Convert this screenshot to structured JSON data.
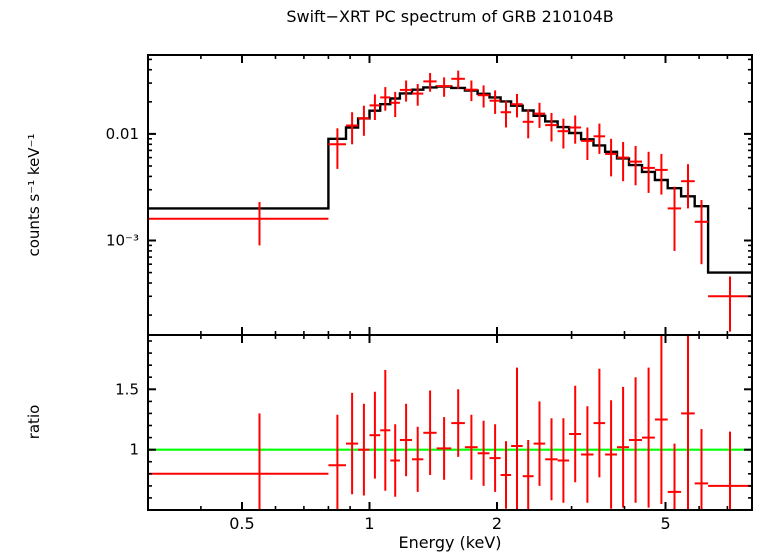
{
  "chart_data": {
    "type": "line",
    "title": "Swift−XRT PC spectrum of GRB 210104B",
    "xlabel": "Energy (keV)",
    "ylabel_top": "counts s⁻¹ keV⁻¹",
    "ylabel_bottom": "ratio",
    "x_scale": "log",
    "xlim": [
      0.3,
      8.0
    ],
    "xticks": [
      {
        "value": 0.5,
        "label": "0.5"
      },
      {
        "value": 1,
        "label": "1"
      },
      {
        "value": 2,
        "label": "2"
      },
      {
        "value": 5,
        "label": "5"
      }
    ],
    "colors": {
      "data": "#ff0000",
      "model": "#000000",
      "ratio_line": "#00ff00",
      "frame": "#000000"
    },
    "legend": "none",
    "grid": "off",
    "top_panel": {
      "y_scale": "log",
      "ylim": [
        0.00013,
        0.055
      ],
      "yticks": [
        {
          "value": 0.01,
          "label": "0.01"
        },
        {
          "value": 0.001,
          "label": "10⁻³"
        }
      ],
      "model_steps": {
        "columns": [
          "e_lo_keV",
          "e_hi_keV",
          "model_rate"
        ],
        "rows": [
          [
            0.3,
            0.8,
            0.002
          ],
          [
            0.8,
            0.88,
            0.009
          ],
          [
            0.88,
            0.94,
            0.0115
          ],
          [
            0.94,
            1.0,
            0.014
          ],
          [
            1.0,
            1.06,
            0.0165
          ],
          [
            1.06,
            1.12,
            0.019
          ],
          [
            1.12,
            1.18,
            0.0215
          ],
          [
            1.18,
            1.26,
            0.024
          ],
          [
            1.26,
            1.34,
            0.026
          ],
          [
            1.34,
            1.44,
            0.0273
          ],
          [
            1.44,
            1.56,
            0.0278
          ],
          [
            1.56,
            1.68,
            0.027
          ],
          [
            1.68,
            1.8,
            0.0255
          ],
          [
            1.8,
            1.92,
            0.0238
          ],
          [
            1.92,
            2.04,
            0.022
          ],
          [
            2.04,
            2.16,
            0.0202
          ],
          [
            2.16,
            2.3,
            0.0184
          ],
          [
            2.3,
            2.44,
            0.0166
          ],
          [
            2.44,
            2.6,
            0.0148
          ],
          [
            2.6,
            2.78,
            0.0131
          ],
          [
            2.78,
            2.96,
            0.0116
          ],
          [
            2.96,
            3.16,
            0.0102
          ],
          [
            3.16,
            3.38,
            0.0089
          ],
          [
            3.38,
            3.6,
            0.0078
          ],
          [
            3.6,
            3.84,
            0.0068
          ],
          [
            3.84,
            4.1,
            0.0059
          ],
          [
            4.1,
            4.4,
            0.0051
          ],
          [
            4.4,
            4.72,
            0.0044
          ],
          [
            4.72,
            5.06,
            0.0037
          ],
          [
            5.06,
            5.44,
            0.0031
          ],
          [
            5.44,
            5.86,
            0.0026
          ],
          [
            5.86,
            6.3,
            0.0021
          ],
          [
            6.3,
            8.0,
            0.0005
          ]
        ]
      },
      "data_points": {
        "columns": [
          "energy_keV",
          "e_lo_keV",
          "e_hi_keV",
          "rate",
          "rate_err"
        ],
        "rows": [
          [
            0.55,
            0.3,
            0.8,
            0.0016,
            0.0007
          ],
          [
            0.84,
            0.8,
            0.88,
            0.008,
            0.0033
          ],
          [
            0.91,
            0.88,
            0.94,
            0.012,
            0.004
          ],
          [
            0.97,
            0.94,
            1.0,
            0.014,
            0.0044
          ],
          [
            1.03,
            1.0,
            1.06,
            0.0185,
            0.005
          ],
          [
            1.09,
            1.06,
            1.12,
            0.022,
            0.0055
          ],
          [
            1.15,
            1.12,
            1.18,
            0.0196,
            0.0052
          ],
          [
            1.22,
            1.18,
            1.26,
            0.0259,
            0.0058
          ],
          [
            1.3,
            1.26,
            1.34,
            0.0239,
            0.0055
          ],
          [
            1.39,
            1.34,
            1.44,
            0.0311,
            0.0062
          ],
          [
            1.5,
            1.44,
            1.56,
            0.0281,
            0.0058
          ],
          [
            1.62,
            1.56,
            1.68,
            0.0329,
            0.0064
          ],
          [
            1.74,
            1.68,
            1.8,
            0.026,
            0.0057
          ],
          [
            1.86,
            1.8,
            1.92,
            0.0231,
            0.0054
          ],
          [
            1.98,
            1.92,
            2.04,
            0.0205,
            0.0051
          ],
          [
            2.1,
            2.04,
            2.16,
            0.016,
            0.0045
          ],
          [
            2.23,
            2.16,
            2.3,
            0.019,
            0.0047
          ],
          [
            2.37,
            2.3,
            2.44,
            0.013,
            0.0039
          ],
          [
            2.52,
            2.44,
            2.6,
            0.0155,
            0.0041
          ],
          [
            2.69,
            2.6,
            2.78,
            0.0121,
            0.0036
          ],
          [
            2.87,
            2.78,
            2.96,
            0.0106,
            0.0033
          ],
          [
            3.06,
            2.96,
            3.16,
            0.0115,
            0.0034
          ],
          [
            3.27,
            3.16,
            3.38,
            0.0086,
            0.0029
          ],
          [
            3.49,
            3.38,
            3.6,
            0.0095,
            0.003
          ],
          [
            3.72,
            3.6,
            3.84,
            0.0065,
            0.0025
          ],
          [
            3.97,
            3.84,
            4.1,
            0.006,
            0.0024
          ],
          [
            4.25,
            4.1,
            4.4,
            0.0055,
            0.0022
          ],
          [
            4.56,
            4.4,
            4.72,
            0.0048,
            0.002
          ],
          [
            4.89,
            4.72,
            5.06,
            0.0046,
            0.0019
          ],
          [
            5.25,
            5.06,
            5.44,
            0.002,
            0.0012
          ],
          [
            5.65,
            5.44,
            5.86,
            0.0036,
            0.0016
          ],
          [
            6.08,
            5.86,
            6.3,
            0.0015,
            0.0009
          ],
          [
            7.1,
            6.3,
            8.0,
            0.0003,
            0.00016
          ]
        ]
      }
    },
    "bottom_panel": {
      "y_scale": "linear",
      "ylim": [
        0.5,
        1.95
      ],
      "yticks": [
        {
          "value": 1,
          "label": "1"
        },
        {
          "value": 1.5,
          "label": "1.5"
        }
      ],
      "reference_line": 1.0,
      "data_points": {
        "columns": [
          "energy_keV",
          "e_lo_keV",
          "e_hi_keV",
          "ratio",
          "ratio_err"
        ],
        "rows": [
          [
            0.55,
            0.3,
            0.8,
            0.8,
            0.5
          ],
          [
            0.84,
            0.8,
            0.88,
            0.87,
            0.42
          ],
          [
            0.91,
            0.88,
            0.94,
            1.05,
            0.42
          ],
          [
            0.97,
            0.94,
            1.0,
            1.0,
            0.38
          ],
          [
            1.03,
            1.0,
            1.06,
            1.12,
            0.36
          ],
          [
            1.09,
            1.06,
            1.12,
            1.16,
            0.5
          ],
          [
            1.15,
            1.12,
            1.18,
            0.91,
            0.3
          ],
          [
            1.22,
            1.18,
            1.26,
            1.08,
            0.3
          ],
          [
            1.3,
            1.26,
            1.34,
            0.92,
            0.27
          ],
          [
            1.39,
            1.34,
            1.44,
            1.14,
            0.35
          ],
          [
            1.5,
            1.44,
            1.56,
            1.01,
            0.26
          ],
          [
            1.62,
            1.56,
            1.68,
            1.22,
            0.28
          ],
          [
            1.74,
            1.68,
            1.8,
            1.02,
            0.27
          ],
          [
            1.86,
            1.8,
            1.92,
            0.97,
            0.27
          ],
          [
            1.98,
            1.92,
            2.04,
            0.93,
            0.28
          ],
          [
            2.1,
            2.04,
            2.16,
            0.79,
            0.28
          ],
          [
            2.23,
            2.16,
            2.3,
            1.03,
            0.65
          ],
          [
            2.37,
            2.3,
            2.44,
            0.78,
            0.3
          ],
          [
            2.52,
            2.44,
            2.6,
            1.05,
            0.35
          ],
          [
            2.69,
            2.6,
            2.78,
            0.92,
            0.34
          ],
          [
            2.87,
            2.78,
            2.96,
            0.91,
            0.35
          ],
          [
            3.06,
            2.96,
            3.16,
            1.13,
            0.4
          ],
          [
            3.27,
            3.16,
            3.38,
            0.96,
            0.4
          ],
          [
            3.49,
            3.38,
            3.6,
            1.22,
            0.45
          ],
          [
            3.72,
            3.6,
            3.84,
            0.96,
            0.45
          ],
          [
            3.97,
            3.84,
            4.1,
            1.02,
            0.5
          ],
          [
            4.25,
            4.1,
            4.4,
            1.08,
            0.52
          ],
          [
            4.56,
            4.4,
            4.72,
            1.1,
            0.58
          ],
          [
            4.89,
            4.72,
            5.06,
            1.25,
            0.7
          ],
          [
            5.25,
            5.06,
            5.44,
            0.65,
            0.4
          ],
          [
            5.65,
            5.44,
            5.86,
            1.3,
            0.9
          ],
          [
            6.08,
            5.86,
            6.3,
            0.72,
            0.45
          ],
          [
            7.1,
            6.3,
            8.0,
            0.7,
            0.45
          ]
        ]
      }
    }
  }
}
